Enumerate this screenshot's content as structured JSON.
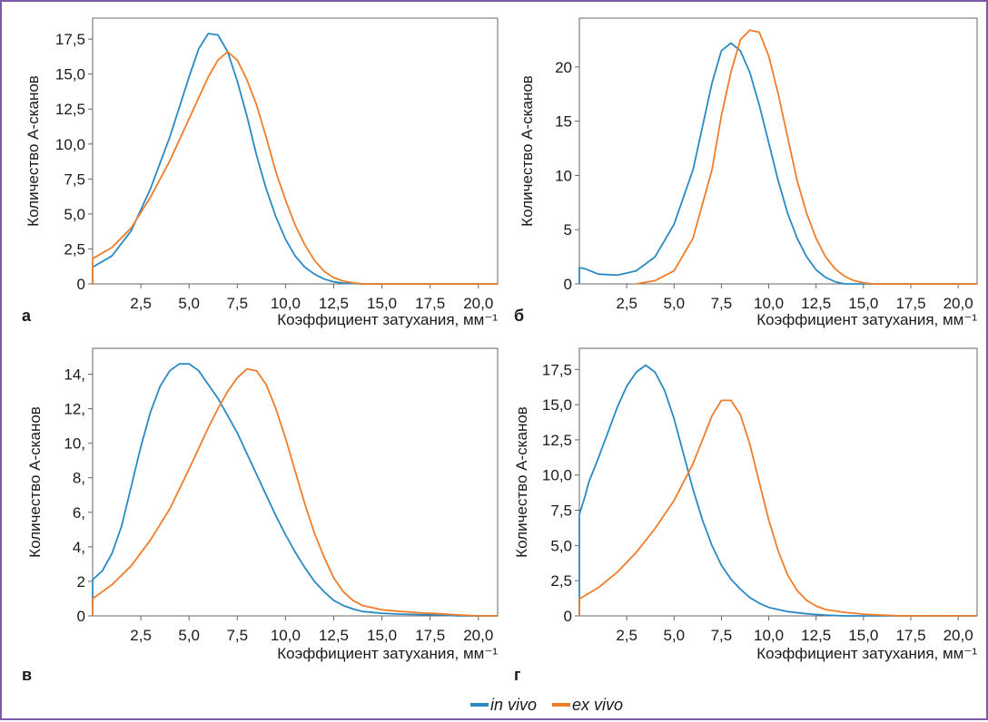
{
  "colors": {
    "in_vivo": "#2a8ac4",
    "ex_vivo": "#ef7d2a",
    "frame": "#7b5aa6"
  },
  "legend": [
    {
      "label": "in vivo",
      "color": "#2a8ac4"
    },
    {
      "label": "ex vivo",
      "color": "#ef7d2a"
    }
  ],
  "chart_data": [
    {
      "panel": "а",
      "type": "line",
      "ylabel": "Количество A-сканов",
      "xlabel": "Коэффициент затухания, мм⁻¹",
      "xlim": [
        0,
        21
      ],
      "ylim": [
        0,
        19
      ],
      "xticks": [
        2.5,
        5.0,
        7.5,
        10.0,
        12.5,
        15.0,
        17.5,
        20.0
      ],
      "xtick_labels": [
        "2,5",
        "5,0",
        "7,5",
        "10,0",
        "12,5",
        "15,0",
        "17,5",
        "20,0"
      ],
      "yticks": [
        0,
        2.5,
        5.0,
        7.5,
        10.0,
        12.5,
        15.0,
        17.5
      ],
      "ytick_labels": [
        "0",
        "2,5",
        "5,0",
        "7,5",
        "10,0",
        "12,5",
        "15,0",
        "17,5"
      ],
      "series": [
        {
          "name": "in vivo",
          "color": "#2a8ac4",
          "points": [
            [
              0,
              0
            ],
            [
              0,
              1.2
            ],
            [
              1,
              2
            ],
            [
              2,
              3.8
            ],
            [
              3,
              6.8
            ],
            [
              4,
              10.5
            ],
            [
              5,
              14.8
            ],
            [
              5.5,
              16.8
            ],
            [
              6,
              17.9
            ],
            [
              6.5,
              17.8
            ],
            [
              7,
              16.6
            ],
            [
              7.5,
              14.5
            ],
            [
              8,
              12
            ],
            [
              8.5,
              9.2
            ],
            [
              9,
              6.8
            ],
            [
              9.5,
              4.8
            ],
            [
              10,
              3.2
            ],
            [
              10.5,
              2
            ],
            [
              11,
              1.2
            ],
            [
              11.5,
              0.7
            ],
            [
              12,
              0.35
            ],
            [
              12.5,
              0.15
            ],
            [
              13,
              0.05
            ],
            [
              14,
              0
            ],
            [
              21,
              0
            ]
          ]
        },
        {
          "name": "ex vivo",
          "color": "#ef7d2a",
          "points": [
            [
              0,
              0
            ],
            [
              0,
              1.8
            ],
            [
              1,
              2.6
            ],
            [
              2,
              4.0
            ],
            [
              3,
              6.2
            ],
            [
              4,
              8.8
            ],
            [
              5,
              11.8
            ],
            [
              6,
              14.8
            ],
            [
              6.5,
              16.0
            ],
            [
              7,
              16.6
            ],
            [
              7.5,
              16.0
            ],
            [
              8,
              14.6
            ],
            [
              8.5,
              12.8
            ],
            [
              9,
              10.5
            ],
            [
              9.5,
              8.0
            ],
            [
              10,
              6.0
            ],
            [
              10.5,
              4.2
            ],
            [
              11,
              2.8
            ],
            [
              11.5,
              1.7
            ],
            [
              12,
              0.9
            ],
            [
              12.5,
              0.45
            ],
            [
              13,
              0.2
            ],
            [
              13.5,
              0.08
            ],
            [
              14,
              0
            ],
            [
              21,
              0
            ]
          ]
        }
      ]
    },
    {
      "panel": "б",
      "type": "line",
      "ylabel": "Количество A-сканов",
      "xlabel": "Коэффициент затухания, мм⁻¹",
      "xlim": [
        0,
        21
      ],
      "ylim": [
        0,
        24.5
      ],
      "xticks": [
        2.5,
        5.0,
        7.5,
        10.0,
        12.5,
        15.0,
        17.5,
        20.0
      ],
      "xtick_labels": [
        "2,5",
        "5,0",
        "7,5",
        "10,0",
        "12,5",
        "15,0",
        "17,5",
        "20,0"
      ],
      "yticks": [
        0,
        5,
        10,
        15,
        20
      ],
      "ytick_labels": [
        "0",
        "5",
        "10",
        "15",
        "20"
      ],
      "series": [
        {
          "name": "in vivo",
          "color": "#2a8ac4",
          "points": [
            [
              0,
              0
            ],
            [
              0,
              1.5
            ],
            [
              0.3,
              1.4
            ],
            [
              1,
              0.9
            ],
            [
              2,
              0.8
            ],
            [
              3,
              1.2
            ],
            [
              4,
              2.5
            ],
            [
              5,
              5.5
            ],
            [
              6,
              10.5
            ],
            [
              6.5,
              14.5
            ],
            [
              7,
              18.5
            ],
            [
              7.5,
              21.5
            ],
            [
              8,
              22.2
            ],
            [
              8.5,
              21.5
            ],
            [
              9,
              19.5
            ],
            [
              9.5,
              16.5
            ],
            [
              10,
              13
            ],
            [
              10.5,
              9.5
            ],
            [
              11,
              6.5
            ],
            [
              11.5,
              4.2
            ],
            [
              12,
              2.5
            ],
            [
              12.5,
              1.3
            ],
            [
              13,
              0.6
            ],
            [
              13.5,
              0.2
            ],
            [
              14,
              0
            ],
            [
              21,
              0
            ]
          ]
        },
        {
          "name": "ex vivo",
          "color": "#ef7d2a",
          "points": [
            [
              3,
              0
            ],
            [
              4,
              0.3
            ],
            [
              5,
              1.2
            ],
            [
              6,
              4.2
            ],
            [
              7,
              10.5
            ],
            [
              7.5,
              15.5
            ],
            [
              8,
              19.5
            ],
            [
              8.5,
              22.5
            ],
            [
              9,
              23.4
            ],
            [
              9.5,
              23.2
            ],
            [
              10,
              21
            ],
            [
              10.5,
              17.5
            ],
            [
              11,
              13.5
            ],
            [
              11.5,
              9.5
            ],
            [
              12,
              6.5
            ],
            [
              12.5,
              4.2
            ],
            [
              13,
              2.5
            ],
            [
              13.5,
              1.4
            ],
            [
              14,
              0.7
            ],
            [
              14.5,
              0.3
            ],
            [
              15,
              0.1
            ],
            [
              15.5,
              0
            ],
            [
              21,
              0
            ]
          ]
        }
      ]
    },
    {
      "panel": "в",
      "type": "line",
      "ylabel": "Количество A-сканов",
      "xlabel": "Коэффициент затухания, мм⁻¹",
      "xlim": [
        0,
        21
      ],
      "ylim": [
        0,
        15.5
      ],
      "xticks": [
        2.5,
        5.0,
        7.5,
        10.0,
        12.5,
        15.0,
        17.5,
        20.0
      ],
      "xtick_labels": [
        "2,5",
        "5,0",
        "7,5",
        "10,0",
        "12,5",
        "15,0",
        "17,5",
        "20,0"
      ],
      "yticks": [
        0,
        2,
        4,
        6,
        8,
        10,
        12,
        14
      ],
      "ytick_labels": [
        "0",
        "2",
        "4,",
        "6,",
        "8,",
        "10,",
        "12,",
        "14,"
      ],
      "series": [
        {
          "name": "in vivo",
          "color": "#2a8ac4",
          "points": [
            [
              0,
              0
            ],
            [
              0,
              2.1
            ],
            [
              0.5,
              2.6
            ],
            [
              1,
              3.6
            ],
            [
              1.5,
              5.2
            ],
            [
              2,
              7.5
            ],
            [
              2.5,
              9.8
            ],
            [
              3,
              11.8
            ],
            [
              3.5,
              13.3
            ],
            [
              4,
              14.2
            ],
            [
              4.5,
              14.6
            ],
            [
              5,
              14.6
            ],
            [
              5.5,
              14.2
            ],
            [
              6,
              13.4
            ],
            [
              6.5,
              12.6
            ],
            [
              7,
              11.6
            ],
            [
              7.5,
              10.6
            ],
            [
              8,
              9.4
            ],
            [
              8.5,
              8.2
            ],
            [
              9,
              7
            ],
            [
              9.5,
              5.8
            ],
            [
              10,
              4.7
            ],
            [
              10.5,
              3.7
            ],
            [
              11,
              2.8
            ],
            [
              11.5,
              2
            ],
            [
              12,
              1.4
            ],
            [
              12.5,
              0.9
            ],
            [
              13,
              0.6
            ],
            [
              13.5,
              0.4
            ],
            [
              14,
              0.25
            ],
            [
              15,
              0.15
            ],
            [
              16,
              0.1
            ],
            [
              18,
              0.05
            ],
            [
              19,
              0
            ],
            [
              21,
              0
            ]
          ]
        },
        {
          "name": "ex vivo",
          "color": "#ef7d2a",
          "points": [
            [
              0,
              0
            ],
            [
              0,
              1
            ],
            [
              1,
              1.8
            ],
            [
              2,
              2.9
            ],
            [
              3,
              4.4
            ],
            [
              4,
              6.2
            ],
            [
              5,
              8.5
            ],
            [
              6,
              10.9
            ],
            [
              6.5,
              12.0
            ],
            [
              7,
              13.0
            ],
            [
              7.5,
              13.8
            ],
            [
              8,
              14.3
            ],
            [
              8.5,
              14.2
            ],
            [
              9,
              13.4
            ],
            [
              9.5,
              12.0
            ],
            [
              10,
              10.3
            ],
            [
              10.5,
              8.4
            ],
            [
              11,
              6.5
            ],
            [
              11.5,
              4.8
            ],
            [
              12,
              3.4
            ],
            [
              12.5,
              2.2
            ],
            [
              13,
              1.4
            ],
            [
              13.5,
              0.9
            ],
            [
              14,
              0.6
            ],
            [
              15,
              0.35
            ],
            [
              16,
              0.25
            ],
            [
              17,
              0.18
            ],
            [
              18,
              0.12
            ],
            [
              19,
              0.05
            ],
            [
              20,
              0
            ],
            [
              21,
              0
            ]
          ]
        }
      ]
    },
    {
      "panel": "г",
      "type": "line",
      "ylabel": "Количество A-сканов",
      "xlabel": "Коэффициент затухания, мм⁻¹",
      "xlim": [
        0,
        21
      ],
      "ylim": [
        0,
        19
      ],
      "xticks": [
        2.5,
        5.0,
        7.5,
        10.0,
        12.5,
        15.0,
        17.5,
        20.0
      ],
      "xtick_labels": [
        "2,5",
        "5,0",
        "7,5",
        "10,0",
        "12,5",
        "15,0",
        "17,5",
        "20,0"
      ],
      "yticks": [
        0,
        2.5,
        5.0,
        7.5,
        10.0,
        12.5,
        15.0,
        17.5
      ],
      "ytick_labels": [
        "0",
        "2,5",
        "5,0",
        "7,5",
        "10,0",
        "12,5",
        "15,0",
        "17,5"
      ],
      "series": [
        {
          "name": "in vivo",
          "color": "#2a8ac4",
          "points": [
            [
              0,
              0
            ],
            [
              0,
              7.2
            ],
            [
              0.3,
              8.5
            ],
            [
              0.5,
              9.5
            ],
            [
              1,
              11.2
            ],
            [
              1.5,
              13.0
            ],
            [
              2,
              14.8
            ],
            [
              2.5,
              16.3
            ],
            [
              3,
              17.3
            ],
            [
              3.5,
              17.8
            ],
            [
              4,
              17.3
            ],
            [
              4.5,
              16.0
            ],
            [
              5,
              14.0
            ],
            [
              5.5,
              11.5
            ],
            [
              6,
              9.0
            ],
            [
              6.5,
              6.8
            ],
            [
              7,
              5.0
            ],
            [
              7.5,
              3.6
            ],
            [
              8,
              2.6
            ],
            [
              8.5,
              1.9
            ],
            [
              9,
              1.3
            ],
            [
              9.5,
              0.9
            ],
            [
              10,
              0.6
            ],
            [
              11,
              0.3
            ],
            [
              12,
              0.15
            ],
            [
              13,
              0.05
            ],
            [
              14,
              0
            ],
            [
              21,
              0
            ]
          ]
        },
        {
          "name": "ex vivo",
          "color": "#ef7d2a",
          "points": [
            [
              0,
              0
            ],
            [
              0,
              1.2
            ],
            [
              1,
              2.0
            ],
            [
              2,
              3.1
            ],
            [
              3,
              4.5
            ],
            [
              4,
              6.2
            ],
            [
              5,
              8.2
            ],
            [
              6,
              10.8
            ],
            [
              6.5,
              12.5
            ],
            [
              7,
              14.2
            ],
            [
              7.5,
              15.3
            ],
            [
              8,
              15.3
            ],
            [
              8.5,
              14.3
            ],
            [
              9,
              12.2
            ],
            [
              9.5,
              9.5
            ],
            [
              10,
              6.8
            ],
            [
              10.5,
              4.6
            ],
            [
              11,
              2.9
            ],
            [
              11.5,
              1.8
            ],
            [
              12,
              1.1
            ],
            [
              12.5,
              0.7
            ],
            [
              13,
              0.45
            ],
            [
              14,
              0.25
            ],
            [
              15,
              0.12
            ],
            [
              16,
              0.05
            ],
            [
              17,
              0
            ],
            [
              21,
              0
            ]
          ]
        }
      ]
    }
  ]
}
